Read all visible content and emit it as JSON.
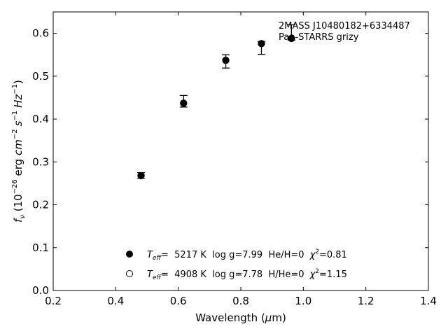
{
  "chart_data": {
    "type": "scatter",
    "xlabel_pre": "Wavelength (",
    "xlabel_mu": "μ",
    "xlabel_post": "m)",
    "ylabel_f": "f",
    "ylabel_nu": "ν",
    "ylabel_p1": " (10",
    "ylabel_exp1": "−26",
    "ylabel_p2": " erg ",
    "ylabel_cm": "cm",
    "ylabel_exp2": "−2",
    "ylabel_s": "s",
    "ylabel_exp3": "−1",
    "ylabel_hz": "Hz",
    "ylabel_exp4": "−1",
    "ylabel_p3": ")",
    "xlim": [
      0.2,
      1.4
    ],
    "ylim": [
      0.0,
      0.65
    ],
    "x_ticks": [
      0.2,
      0.4,
      0.6,
      0.8,
      1.0,
      1.2,
      1.4
    ],
    "x_tick_labels": [
      "0.2",
      "0.4",
      "0.6",
      "0.8",
      "1.0",
      "1.2",
      "1.4"
    ],
    "y_ticks": [
      0.0,
      0.1,
      0.2,
      0.3,
      0.4,
      0.5,
      0.6
    ],
    "y_tick_labels": [
      "0.0",
      "0.1",
      "0.2",
      "0.3",
      "0.4",
      "0.5",
      "0.6"
    ],
    "grid": false,
    "annotation_line1": "2MASS J10480182+6334487",
    "annotation_line2": "Pan-STARRS grizy",
    "observed": {
      "x": [
        0.481,
        0.617,
        0.752,
        0.866,
        0.962
      ],
      "y": [
        0.268,
        0.437,
        0.537,
        0.576,
        0.588
      ],
      "err_low": [
        0.006,
        0.009,
        0.018,
        0.025,
        0.004
      ],
      "err_high": [
        0.007,
        0.018,
        0.013,
        0.005,
        0.032
      ]
    },
    "models": [
      {
        "x": [
          0.481,
          0.617,
          0.752,
          0.866,
          0.962
        ],
        "y": [
          0.268,
          0.437,
          0.537,
          0.576,
          0.588
        ],
        "marker": "filled",
        "legend_teff": "T",
        "legend_sub": "eff",
        "legend_text": "=  5217 K  log g=7.99  He/H=0",
        "legend_chi": "χ",
        "legend_chi_exp": "2",
        "legend_chi_val": "=0.81"
      },
      {
        "x": [],
        "y": [],
        "marker": "open",
        "legend_teff": "T",
        "legend_sub": "eff",
        "legend_text": "=  4908 K  log g=7.78  H/He=0",
        "legend_chi": "χ",
        "legend_chi_exp": "2",
        "legend_chi_val": "=1.15"
      }
    ],
    "colors": {
      "marker": "#000000",
      "axis": "#000000",
      "background": "#ffffff"
    }
  }
}
